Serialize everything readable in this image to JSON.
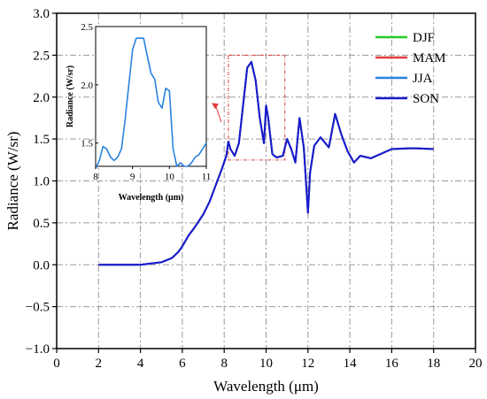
{
  "chart_data": {
    "type": "line",
    "title": "",
    "xlabel": "Wavelength (μm)",
    "ylabel": "Radiance (W/sr)",
    "xlim": [
      0,
      20
    ],
    "ylim": [
      -1.0,
      3.0
    ],
    "xticks": [
      0,
      2,
      4,
      6,
      8,
      10,
      12,
      14,
      16,
      18,
      20
    ],
    "yticks": [
      -1.0,
      -0.5,
      0.0,
      0.5,
      1.0,
      1.5,
      2.0,
      2.5,
      3.0
    ],
    "xtick_labels": [
      "0",
      "2",
      "4",
      "6",
      "8",
      "10",
      "12",
      "14",
      "16",
      "18",
      "20"
    ],
    "ytick_labels": [
      "−1.0",
      "−0.5",
      "0.0",
      "0.5",
      "1.0",
      "1.5",
      "2.0",
      "2.5",
      "3.0"
    ],
    "grid": true,
    "legend_position": "top-right",
    "series": [
      {
        "name": "DJF",
        "color": "#22cc22",
        "x": [
          2.0,
          4.0,
          5.0,
          5.5,
          5.8,
          6.0,
          6.3,
          6.6,
          7.0,
          7.3,
          7.6,
          7.9,
          8.1,
          8.2,
          8.3,
          8.5,
          8.7,
          8.9,
          9.1,
          9.3,
          9.5,
          9.7,
          9.9,
          10.0,
          10.1,
          10.3,
          10.5,
          10.8,
          11.0,
          11.2,
          11.4,
          11.6,
          11.8,
          12.0,
          12.1,
          12.3,
          12.6,
          13.0,
          13.3,
          13.6,
          13.9,
          14.2,
          14.5,
          15.0,
          16.0,
          17.0,
          18.0
        ],
        "y": [
          0.0,
          0.0,
          0.03,
          0.08,
          0.15,
          0.22,
          0.35,
          0.45,
          0.6,
          0.75,
          0.95,
          1.15,
          1.3,
          1.47,
          1.38,
          1.3,
          1.45,
          1.9,
          2.35,
          2.42,
          2.2,
          1.75,
          1.45,
          1.9,
          1.75,
          1.32,
          1.28,
          1.3,
          1.5,
          1.38,
          1.22,
          1.75,
          1.4,
          0.62,
          1.1,
          1.42,
          1.52,
          1.4,
          1.8,
          1.55,
          1.35,
          1.22,
          1.3,
          1.27,
          1.38,
          1.39,
          1.38
        ]
      },
      {
        "name": "MAM",
        "color": "#e03c3c",
        "x": [
          2.0,
          4.0,
          5.0,
          5.5,
          5.8,
          6.0,
          6.3,
          6.6,
          7.0,
          7.3,
          7.6,
          7.9,
          8.1,
          8.2,
          8.3,
          8.5,
          8.7,
          8.9,
          9.1,
          9.3,
          9.5,
          9.7,
          9.9,
          10.0,
          10.1,
          10.3,
          10.5,
          10.8,
          11.0,
          11.2,
          11.4,
          11.6,
          11.8,
          12.0,
          12.1,
          12.3,
          12.6,
          13.0,
          13.3,
          13.6,
          13.9,
          14.2,
          14.5,
          15.0,
          16.0,
          17.0,
          18.0
        ],
        "y": [
          0.0,
          0.0,
          0.03,
          0.08,
          0.15,
          0.22,
          0.35,
          0.45,
          0.6,
          0.75,
          0.95,
          1.15,
          1.3,
          1.47,
          1.38,
          1.3,
          1.45,
          1.9,
          2.35,
          2.42,
          2.2,
          1.75,
          1.45,
          1.9,
          1.75,
          1.32,
          1.28,
          1.3,
          1.5,
          1.38,
          1.22,
          1.75,
          1.4,
          0.62,
          1.1,
          1.42,
          1.52,
          1.4,
          1.8,
          1.55,
          1.35,
          1.22,
          1.3,
          1.27,
          1.38,
          1.39,
          1.38
        ]
      },
      {
        "name": "JJA",
        "color": "#2a82e0",
        "x": [
          2.0,
          4.0,
          5.0,
          5.5,
          5.8,
          6.0,
          6.3,
          6.6,
          7.0,
          7.3,
          7.6,
          7.9,
          8.1,
          8.2,
          8.3,
          8.5,
          8.7,
          8.9,
          9.1,
          9.3,
          9.5,
          9.7,
          9.9,
          10.0,
          10.1,
          10.3,
          10.5,
          10.8,
          11.0,
          11.2,
          11.4,
          11.6,
          11.8,
          12.0,
          12.1,
          12.3,
          12.6,
          13.0,
          13.3,
          13.6,
          13.9,
          14.2,
          14.5,
          15.0,
          16.0,
          17.0,
          18.0
        ],
        "y": [
          0.0,
          0.0,
          0.03,
          0.08,
          0.15,
          0.22,
          0.35,
          0.45,
          0.6,
          0.75,
          0.95,
          1.15,
          1.3,
          1.47,
          1.38,
          1.3,
          1.45,
          1.9,
          2.35,
          2.42,
          2.2,
          1.75,
          1.45,
          1.9,
          1.75,
          1.32,
          1.28,
          1.3,
          1.5,
          1.38,
          1.22,
          1.75,
          1.4,
          0.62,
          1.1,
          1.42,
          1.52,
          1.4,
          1.8,
          1.55,
          1.35,
          1.22,
          1.3,
          1.27,
          1.38,
          1.39,
          1.38
        ]
      },
      {
        "name": "SON",
        "color": "#1a1ad0",
        "x": [
          2.0,
          4.0,
          5.0,
          5.5,
          5.8,
          6.0,
          6.3,
          6.6,
          7.0,
          7.3,
          7.6,
          7.9,
          8.1,
          8.2,
          8.3,
          8.5,
          8.7,
          8.9,
          9.1,
          9.3,
          9.5,
          9.7,
          9.9,
          10.0,
          10.1,
          10.3,
          10.5,
          10.8,
          11.0,
          11.2,
          11.4,
          11.6,
          11.8,
          12.0,
          12.1,
          12.3,
          12.6,
          13.0,
          13.3,
          13.6,
          13.9,
          14.2,
          14.5,
          15.0,
          16.0,
          17.0,
          18.0
        ],
        "y": [
          0.0,
          0.0,
          0.03,
          0.08,
          0.15,
          0.22,
          0.35,
          0.45,
          0.6,
          0.75,
          0.95,
          1.15,
          1.3,
          1.47,
          1.38,
          1.3,
          1.45,
          1.9,
          2.35,
          2.42,
          2.2,
          1.75,
          1.45,
          1.9,
          1.75,
          1.32,
          1.28,
          1.3,
          1.5,
          1.38,
          1.22,
          1.75,
          1.4,
          0.62,
          1.1,
          1.42,
          1.52,
          1.4,
          1.8,
          1.55,
          1.35,
          1.22,
          1.3,
          1.27,
          1.38,
          1.39,
          1.38
        ]
      }
    ],
    "zoom_box": {
      "xlim": [
        8.2,
        10.9
      ],
      "ylim": [
        1.25,
        2.5
      ],
      "color": "#e03c3c"
    },
    "inset": {
      "xlabel": "Wavelength (μm)",
      "ylabel": "Radiance (W/sr)",
      "xlim": [
        8,
        11
      ],
      "ylim": [
        1.3,
        2.5
      ],
      "xticks": [
        8,
        9,
        10,
        11
      ],
      "yticks": [
        1.5,
        2.0,
        2.5
      ],
      "xtick_labels": [
        "8",
        "9",
        "10",
        "11"
      ],
      "ytick_labels": [
        "1.5",
        "2.0",
        "2.5"
      ],
      "x": [
        8.0,
        8.1,
        8.2,
        8.3,
        8.4,
        8.5,
        8.6,
        8.7,
        8.8,
        8.9,
        9.0,
        9.1,
        9.2,
        9.3,
        9.4,
        9.5,
        9.6,
        9.7,
        9.8,
        9.9,
        10.0,
        10.1,
        10.2,
        10.3,
        10.4,
        10.5,
        10.6,
        10.7,
        10.8,
        10.9,
        11.0
      ],
      "y": [
        1.28,
        1.35,
        1.47,
        1.45,
        1.38,
        1.35,
        1.38,
        1.45,
        1.7,
        2.0,
        2.3,
        2.4,
        2.4,
        2.4,
        2.25,
        2.1,
        2.05,
        1.85,
        1.8,
        1.97,
        1.95,
        1.45,
        1.3,
        1.33,
        1.3,
        1.3,
        1.33,
        1.38,
        1.4,
        1.45,
        1.5
      ]
    }
  }
}
